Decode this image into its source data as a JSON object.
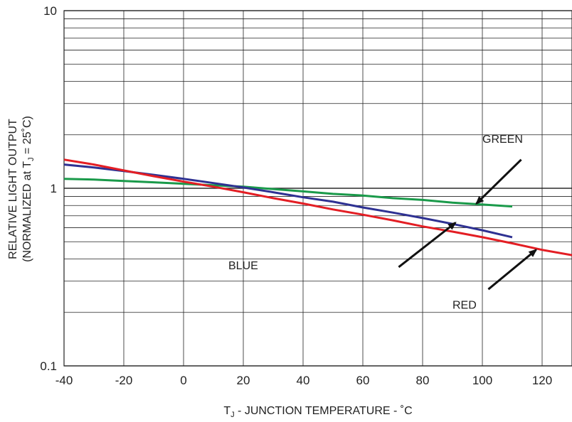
{
  "chart_data": {
    "type": "line",
    "xlabel_prefix": "T",
    "xlabel_sub": "J",
    "xlabel_rest": " - JUNCTION TEMPERATURE - ˚C",
    "ylabel_line1": "RELATIVE LIGHT OUTPUT",
    "ylabel_line2_pre": "(NORMALIZED at T",
    "ylabel_line2_sub": "J",
    "ylabel_line2_post": " = 25˚C)",
    "xlim": [
      -40,
      130
    ],
    "ylim": [
      0.1,
      10
    ],
    "yscale": "log",
    "grid": true,
    "x_ticks": [
      "-40",
      "-20",
      "0",
      "20",
      "40",
      "60",
      "80",
      "100",
      "120"
    ],
    "y_ticks": [
      "0.1",
      "1",
      "10"
    ],
    "series": [
      {
        "name": "GREEN",
        "color": "#1a9a4a",
        "x": [
          -40,
          -30,
          -20,
          -10,
          0,
          10,
          20,
          30,
          40,
          50,
          60,
          70,
          80,
          90,
          100,
          110
        ],
        "y": [
          1.13,
          1.12,
          1.1,
          1.08,
          1.06,
          1.04,
          1.02,
          0.99,
          0.96,
          0.93,
          0.91,
          0.88,
          0.86,
          0.83,
          0.81,
          0.79
        ]
      },
      {
        "name": "BLUE",
        "color": "#2e3192",
        "x": [
          -40,
          -30,
          -20,
          -10,
          0,
          10,
          20,
          30,
          40,
          50,
          60,
          70,
          80,
          90,
          100,
          110
        ],
        "y": [
          1.36,
          1.31,
          1.25,
          1.19,
          1.13,
          1.07,
          1.01,
          0.95,
          0.89,
          0.84,
          0.78,
          0.73,
          0.68,
          0.63,
          0.58,
          0.53
        ]
      },
      {
        "name": "RED",
        "color": "#e31e24",
        "x": [
          -40,
          -30,
          -20,
          -10,
          0,
          10,
          20,
          30,
          40,
          50,
          60,
          70,
          80,
          90,
          100,
          110,
          120,
          130
        ],
        "y": [
          1.45,
          1.36,
          1.26,
          1.17,
          1.09,
          1.02,
          0.95,
          0.88,
          0.82,
          0.76,
          0.71,
          0.66,
          0.61,
          0.57,
          0.53,
          0.49,
          0.45,
          0.42
        ]
      }
    ],
    "annotations": [
      {
        "text": "GREEN",
        "label_x": 100,
        "label_y": 1.8,
        "arrow_from": [
          113,
          1.45
        ],
        "arrow_to": [
          98,
          0.82
        ]
      },
      {
        "text": "BLUE",
        "label_x": 15,
        "label_y": 0.35,
        "arrow_from": [
          72,
          0.36
        ],
        "arrow_to": [
          91,
          0.64
        ]
      },
      {
        "text": "RED",
        "label_x": 90,
        "label_y": 0.21,
        "arrow_from": [
          102,
          0.27
        ],
        "arrow_to": [
          118,
          0.45
        ]
      }
    ]
  }
}
